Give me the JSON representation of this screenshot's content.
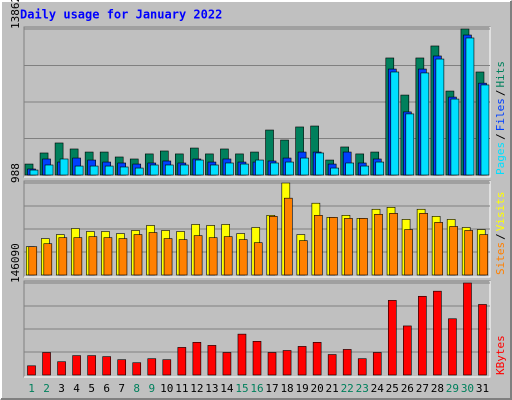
{
  "chart_data": {
    "type": "bar",
    "title": "Daily usage for January 2022",
    "title_color": "#0000ff",
    "categories": [
      "1",
      "2",
      "3",
      "4",
      "5",
      "6",
      "7",
      "8",
      "9",
      "10",
      "11",
      "12",
      "13",
      "14",
      "15",
      "16",
      "17",
      "18",
      "19",
      "20",
      "21",
      "22",
      "23",
      "24",
      "25",
      "26",
      "27",
      "28",
      "29",
      "30",
      "31"
    ],
    "category_colors": [
      "#00805c",
      "#00805c",
      "#000000",
      "#000000",
      "#000000",
      "#000000",
      "#000000",
      "#00805c",
      "#00805c",
      "#000000",
      "#000000",
      "#000000",
      "#000000",
      "#000000",
      "#00805c",
      "#00805c",
      "#000000",
      "#000000",
      "#000000",
      "#000000",
      "#000000",
      "#00805c",
      "#00805c",
      "#000000",
      "#000000",
      "#000000",
      "#000000",
      "#000000",
      "#00805c",
      "#00805c",
      "#000000"
    ],
    "legend_separator": "/",
    "grid": true,
    "panels": [
      {
        "ylim": [
          0,
          13862
        ],
        "yticks": [
          13862
        ],
        "series": [
          {
            "name": "Hits",
            "color": "#00805c",
            "values": [
              1040,
              2090,
              3040,
              2470,
              2180,
              2180,
              1710,
              1520,
              2000,
              2280,
              2000,
              2560,
              2000,
              2470,
              2000,
              2180,
              4270,
              3320,
              4560,
              4650,
              1420,
              2660,
              2000,
              2180,
              11110,
              7590,
              11110,
              12250,
              7970,
              13862,
              9780
            ]
          },
          {
            "name": "Files",
            "color": "#0040ff",
            "values": [
              570,
              1520,
              1230,
              1610,
              1420,
              1230,
              1140,
              1040,
              1140,
              1330,
              1140,
              1520,
              1230,
              1520,
              1230,
              1230,
              1330,
              1610,
              2180,
              2180,
              1040,
              2180,
              1140,
              1520,
              10060,
              5990,
              10060,
              11300,
              7400,
              13290,
              8720
            ]
          },
          {
            "name": "Pages",
            "color": "#00e0ff",
            "values": [
              470,
              950,
              1520,
              850,
              850,
              850,
              760,
              660,
              950,
              950,
              950,
              1420,
              950,
              1140,
              1040,
              1420,
              1140,
              1230,
              1610,
              2090,
              660,
              1140,
              850,
              1230,
              9780,
              5800,
              9690,
              11010,
              7210,
              13010,
              8550
            ]
          }
        ]
      },
      {
        "ylim": [
          0,
          988
        ],
        "yticks": [
          988
        ],
        "series": [
          {
            "name": "Visits",
            "color": "#ffff00",
            "values": [
              304,
              391,
              434,
              499,
              467,
              467,
              445,
              478,
              532,
              478,
              467,
              543,
              532,
              543,
              445,
              510,
              641,
              988,
              434,
              771,
              619,
              641,
              608,
              706,
              727,
              597,
              706,
              630,
              597,
              510,
              488
            ]
          },
          {
            "name": "Sites",
            "color": "#ff8000",
            "values": [
              304,
              336,
              401,
              401,
              412,
              401,
              391,
              434,
              456,
              391,
              380,
              423,
              401,
              412,
              380,
              347,
              630,
              825,
              369,
              641,
              619,
              608,
              608,
              652,
              662,
              488,
              662,
              565,
              521,
              478,
              434
            ]
          }
        ]
      },
      {
        "ylim": [
          0,
          146090
        ],
        "yticks": [
          146090
        ],
        "series": [
          {
            "name": "KBytes",
            "color": "#ff0000",
            "values": [
              14600,
              35700,
              21100,
              30800,
              30800,
              29200,
              24300,
              19500,
              25900,
              24300,
              43800,
              51900,
              47000,
              35700,
              64900,
              53500,
              35700,
              38900,
              45400,
              51900,
              32500,
              40600,
              25900,
              35700,
              118500,
              77900,
              125000,
              133100,
              89300,
              146090,
              112000
            ]
          }
        ]
      }
    ]
  }
}
